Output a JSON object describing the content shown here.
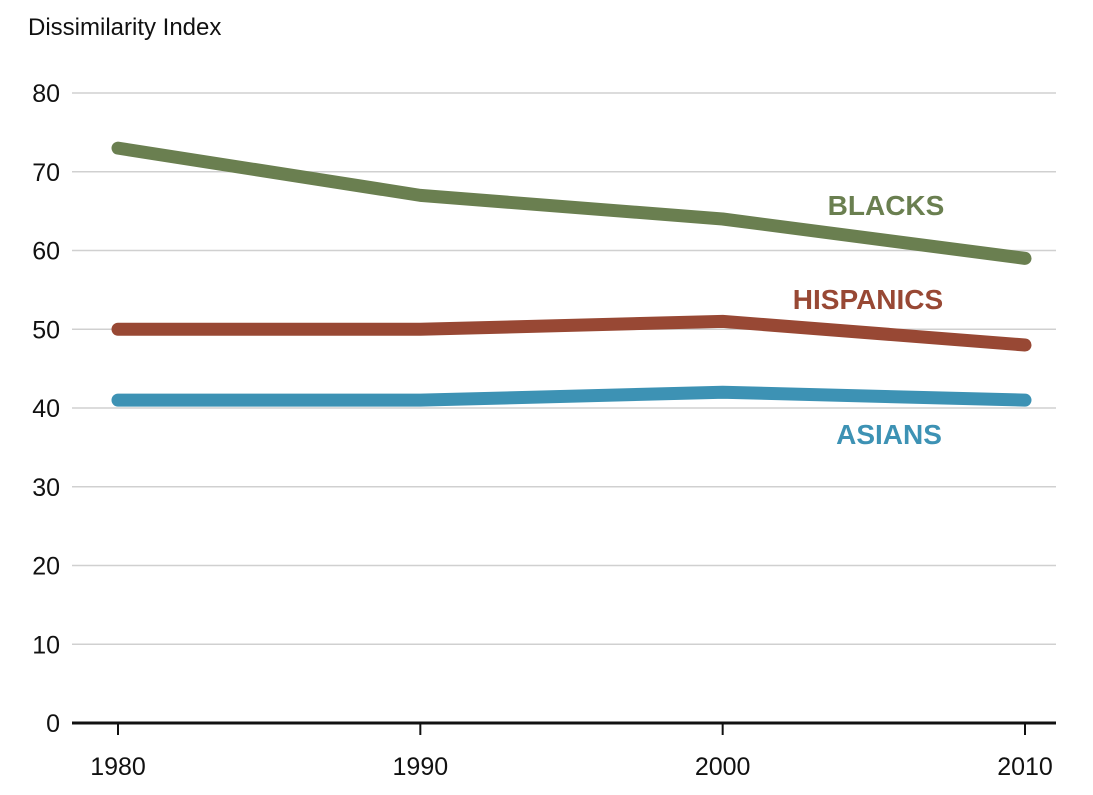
{
  "chart_data": {
    "type": "line",
    "ylabel": "Dissimilarity Index",
    "x": [
      1980,
      1990,
      2000,
      2010
    ],
    "xticks": [
      "1980",
      "1990",
      "2000",
      "2010"
    ],
    "yticks": [
      "0",
      "10",
      "20",
      "30",
      "40",
      "50",
      "60",
      "70",
      "80"
    ],
    "ylim": [
      0,
      80
    ],
    "grid": true,
    "legend": "inline labels at right",
    "series": [
      {
        "name": "BLACKS",
        "values": [
          73,
          67,
          64,
          59
        ],
        "color": "#6a7f50"
      },
      {
        "name": "HISPANICS",
        "values": [
          50,
          50,
          51,
          48
        ],
        "color": "#984834"
      },
      {
        "name": "ASIANS",
        "values": [
          41,
          41,
          42,
          41
        ],
        "color": "#3d92b4"
      }
    ]
  }
}
